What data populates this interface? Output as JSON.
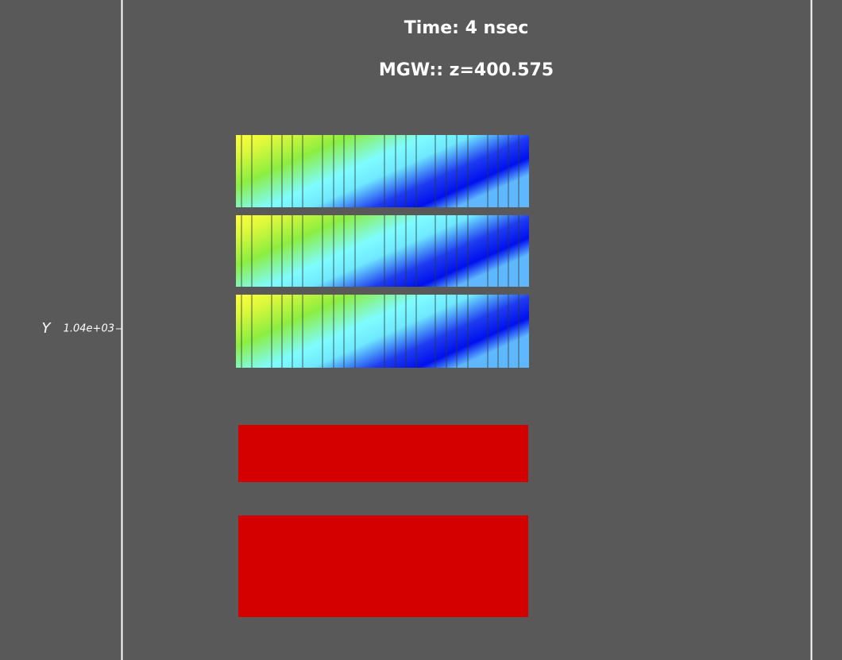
{
  "header": {
    "title": "Time: 4 nsec",
    "subtitle": "MGW:: z=400.575"
  },
  "axis": {
    "label": "Y",
    "tick": "1.04e+03"
  }
}
